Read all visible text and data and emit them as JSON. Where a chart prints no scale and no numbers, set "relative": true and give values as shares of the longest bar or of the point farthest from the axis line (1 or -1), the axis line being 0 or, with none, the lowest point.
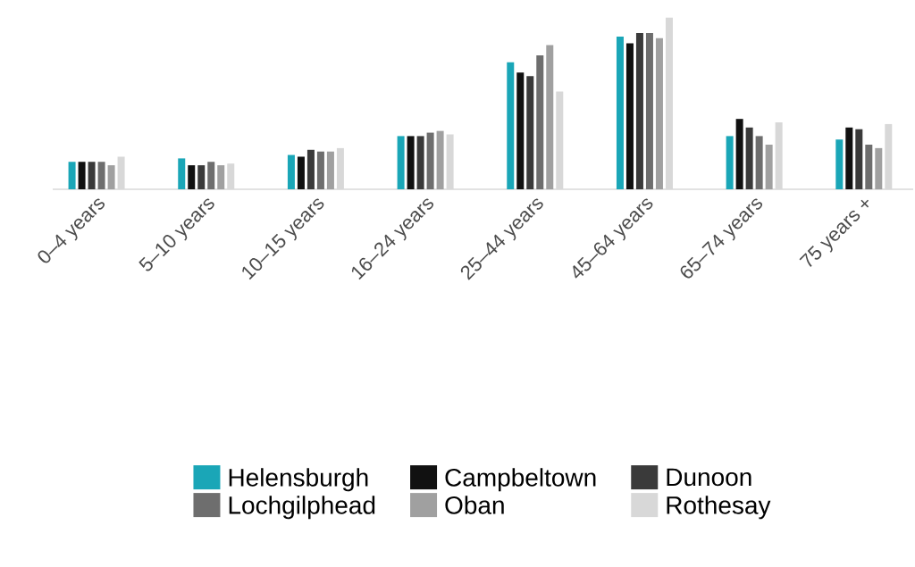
{
  "chart_data": {
    "type": "bar",
    "relative": true,
    "legend": "bottom",
    "categories": [
      "0–4 years",
      "5–10 years",
      "10–15 years",
      "16–24 years",
      "25–44 years",
      "45–64 years",
      "65–74 years",
      "75 years +"
    ],
    "series": [
      {
        "name": "Helensburgh",
        "color": "#1aa6b7",
        "values": [
          0.16,
          0.18,
          0.2,
          0.31,
          0.74,
          0.89,
          0.31,
          0.29
        ]
      },
      {
        "name": "Campbeltown",
        "color": "#111111",
        "values": [
          0.16,
          0.14,
          0.19,
          0.31,
          0.68,
          0.85,
          0.41,
          0.36
        ]
      },
      {
        "name": "Dunoon",
        "color": "#3a3a3a",
        "values": [
          0.16,
          0.14,
          0.23,
          0.31,
          0.66,
          0.91,
          0.36,
          0.35
        ]
      },
      {
        "name": "Lochgilphead",
        "color": "#6e6e6e",
        "values": [
          0.16,
          0.16,
          0.22,
          0.33,
          0.78,
          0.91,
          0.31,
          0.26
        ]
      },
      {
        "name": "Oban",
        "color": "#a0a0a0",
        "values": [
          0.14,
          0.14,
          0.22,
          0.34,
          0.84,
          0.88,
          0.26,
          0.24
        ]
      },
      {
        "name": "Rothesay",
        "color": "#d8d8d8",
        "values": [
          0.19,
          0.15,
          0.24,
          0.32,
          0.57,
          1.0,
          0.39,
          0.38
        ]
      }
    ]
  }
}
